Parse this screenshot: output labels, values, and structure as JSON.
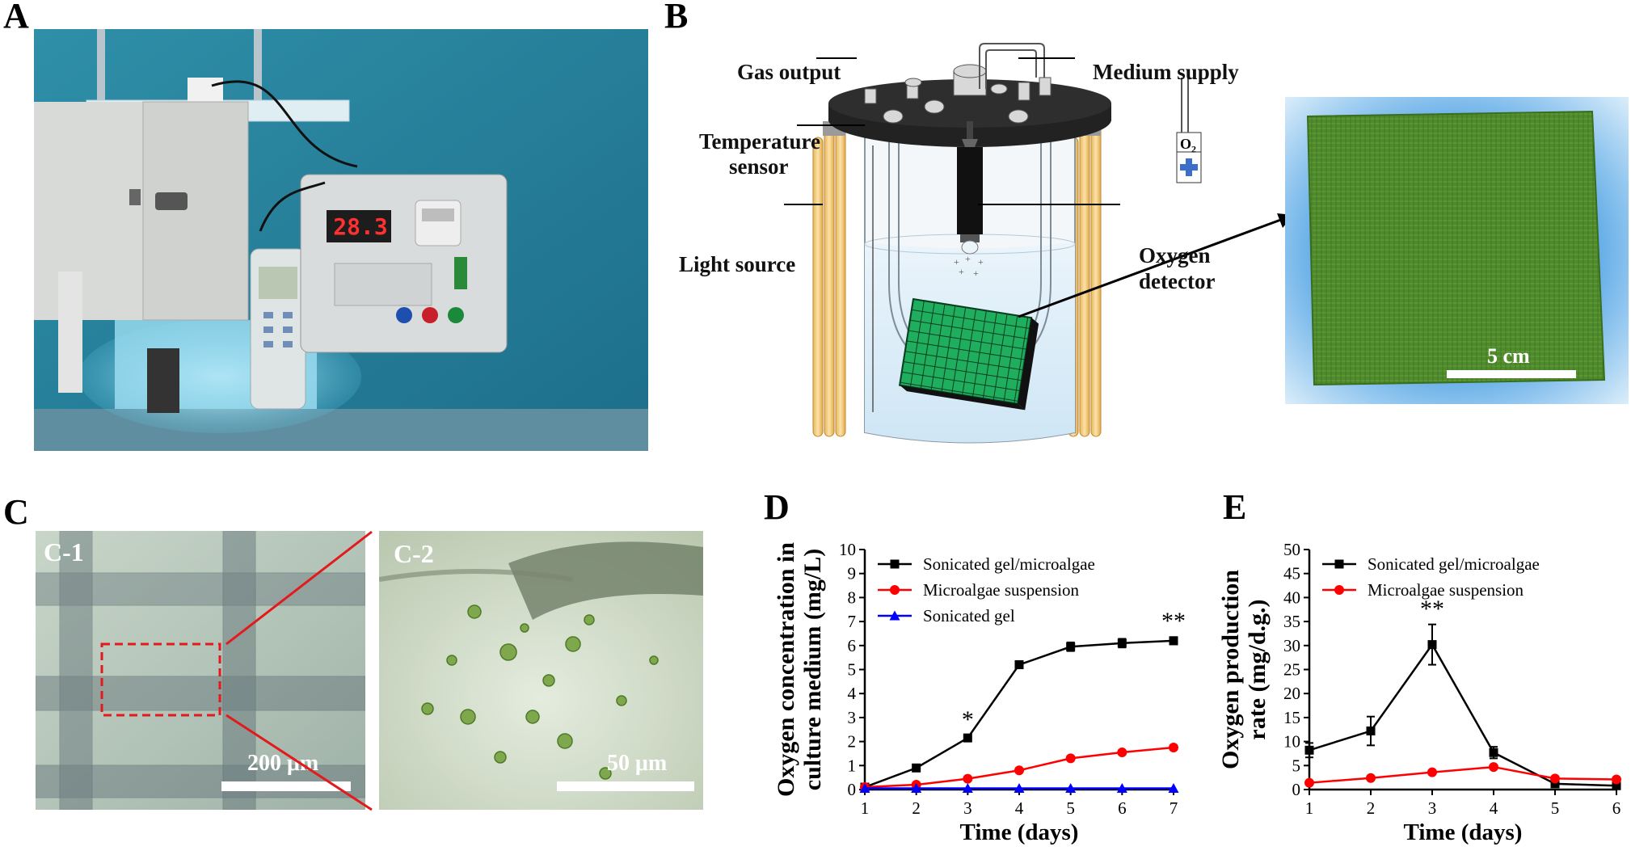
{
  "panels": {
    "a": "A",
    "b": "B",
    "c": "C",
    "d": "D",
    "e": "E"
  },
  "panel_a": {
    "display_reading": "28.3"
  },
  "panel_b": {
    "labels": {
      "gas_output": "Gas output",
      "medium_supply": "Medium supply",
      "temperature_sensor_1": "Temperature",
      "temperature_sensor_2": "sensor",
      "light_source": "Light source",
      "oxygen_detector_1": "Oxygen",
      "oxygen_detector_2": "detector",
      "o2": "O",
      "o2_sub": "2"
    },
    "scale_bar": "5 cm",
    "colors": {
      "sheet": "#1fae5e",
      "photo_bg": "#4da6e8",
      "light": "#f3c46a"
    }
  },
  "panel_c": {
    "c1_label": "C-1",
    "c1_scale": "200 μm",
    "c2_label": "C-2",
    "c2_scale": "50 μm",
    "zoom_color": "#e31a1c"
  },
  "chart_data": [
    {
      "type": "line",
      "panel": "D",
      "x": [
        1,
        2,
        3,
        4,
        5,
        6,
        7
      ],
      "xlabel": "Time (days)",
      "ylabel_line1": "Oxygen concentration in",
      "ylabel_line2": "culture medium (mg/L)",
      "ylim": [
        0,
        10
      ],
      "yticks": [
        0,
        1,
        2,
        3,
        4,
        5,
        6,
        7,
        8,
        9,
        10
      ],
      "xlim": [
        1,
        7
      ],
      "xticks": [
        1,
        2,
        3,
        4,
        5,
        6,
        7
      ],
      "legend_position": "top-left",
      "series": [
        {
          "name": "Sonicated gel/microalgae",
          "color": "#000000",
          "marker": "square",
          "values": [
            0.1,
            0.9,
            2.15,
            5.2,
            5.95,
            6.1,
            6.2
          ],
          "errors": [
            0.05,
            0.08,
            0.12,
            0.15,
            0.18,
            0.18,
            0.15
          ]
        },
        {
          "name": "Microalgae suspension",
          "color": "#ff0000",
          "marker": "circle",
          "values": [
            0.1,
            0.2,
            0.45,
            0.8,
            1.3,
            1.55,
            1.75
          ],
          "errors": [
            0.03,
            0.04,
            0.05,
            0.06,
            0.08,
            0.08,
            0.09
          ]
        },
        {
          "name": "Sonicated gel",
          "color": "#0000ff",
          "marker": "triangle",
          "values": [
            0.05,
            0.05,
            0.05,
            0.05,
            0.05,
            0.05,
            0.05
          ],
          "errors": [
            0,
            0,
            0,
            0,
            0,
            0,
            0
          ]
        }
      ],
      "annotations": [
        {
          "x": 3,
          "y": 2.6,
          "text": "*"
        },
        {
          "x": 7,
          "y": 6.7,
          "text": "**"
        }
      ]
    },
    {
      "type": "line",
      "panel": "E",
      "x": [
        1,
        2,
        3,
        4,
        5,
        6
      ],
      "xlabel": "Time (days)",
      "ylabel_line1": "Oxygen production",
      "ylabel_line2": "rate (mg/d.g.)",
      "ylim": [
        0,
        50
      ],
      "yticks": [
        0,
        5,
        10,
        15,
        20,
        25,
        30,
        35,
        40,
        45,
        50
      ],
      "xlim": [
        1,
        6
      ],
      "xticks": [
        1,
        2,
        3,
        4,
        5,
        6
      ],
      "legend_position": "top-left",
      "series": [
        {
          "name": "Sonicated gel/microalgae",
          "color": "#000000",
          "marker": "square",
          "values": [
            8.2,
            12.2,
            30.2,
            7.7,
            1.2,
            0.8
          ],
          "errors": [
            1.5,
            3.0,
            4.2,
            1.2,
            0.5,
            0.5
          ]
        },
        {
          "name": "Microalgae suspension",
          "color": "#ff0000",
          "marker": "circle",
          "values": [
            1.4,
            2.4,
            3.6,
            4.7,
            2.3,
            2.1
          ],
          "errors": [
            0.3,
            0.3,
            0.4,
            0.4,
            0.3,
            0.3
          ]
        }
      ],
      "annotations": [
        {
          "x": 3,
          "y": 36,
          "text": "**"
        }
      ]
    }
  ]
}
